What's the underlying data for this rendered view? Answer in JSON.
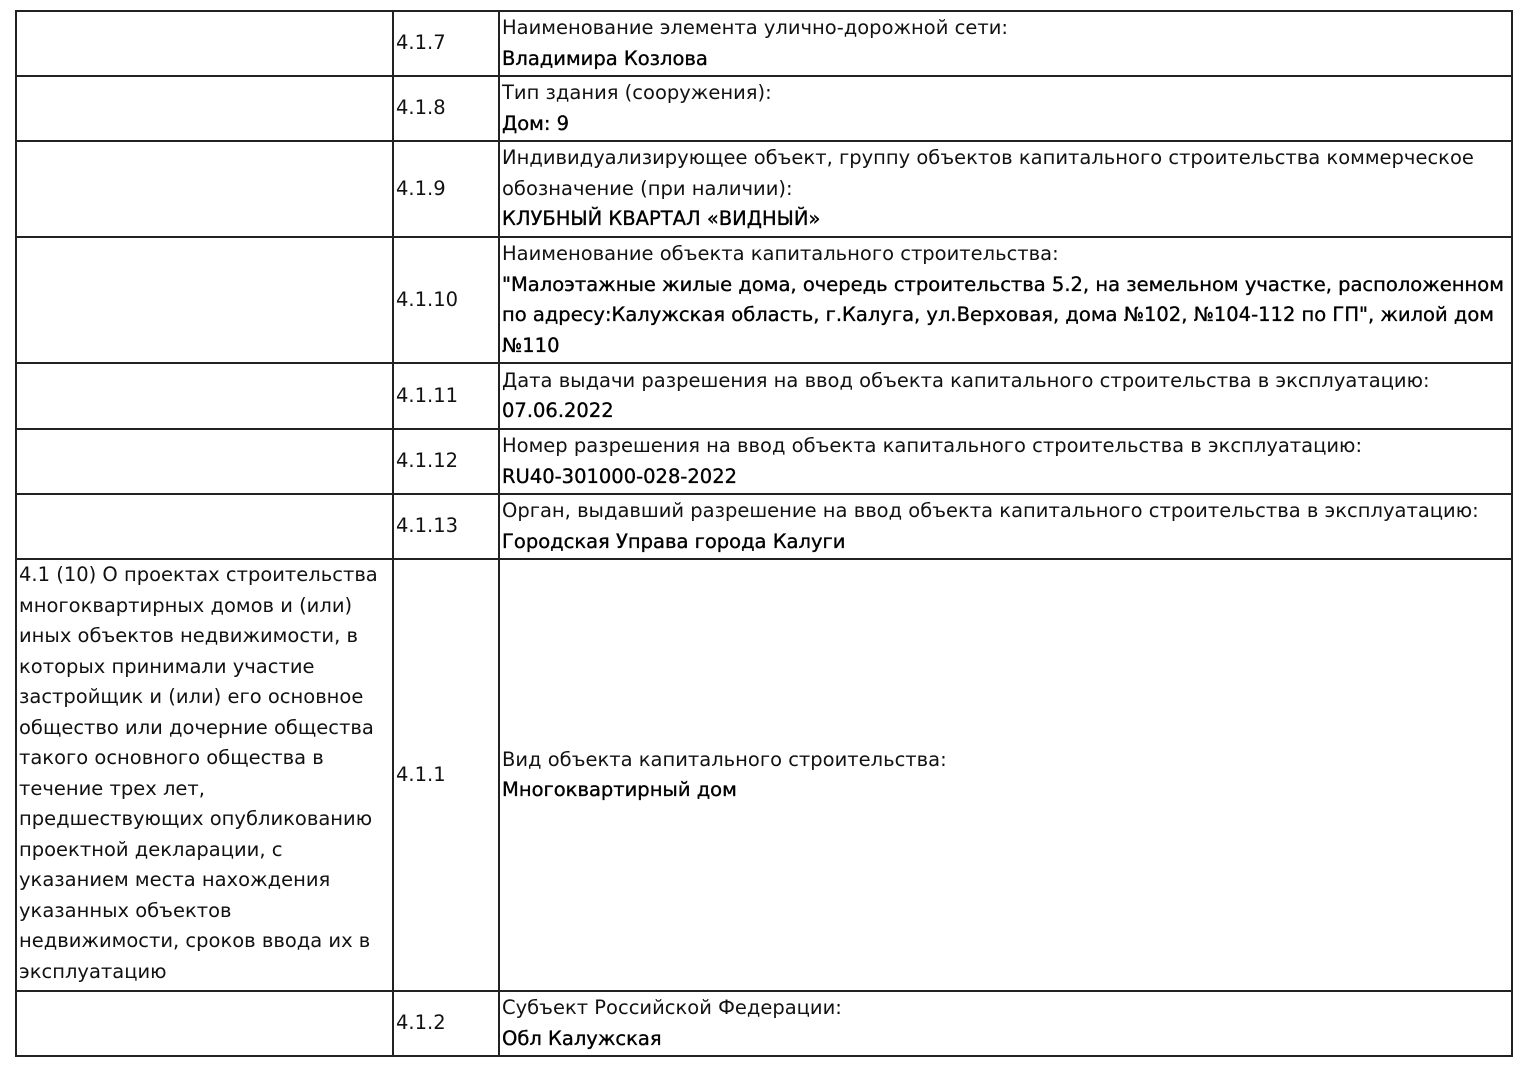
{
  "rows": [
    {
      "section": "",
      "code": "4.1.7",
      "label": "Наименование элемента улично-дорожной сети:",
      "value": "Владимира Козлова",
      "height": 65
    },
    {
      "section": "",
      "code": "4.1.8",
      "label": "Тип здания (сооружения):",
      "value": "Дом: 9",
      "height": 65
    },
    {
      "section": "",
      "code": "4.1.9",
      "label": "Индивидуализирующее объект, группу объектов капитального строительства коммерческое обозначение (при наличии):",
      "value": "КЛУБНЫЙ КВАРТАЛ «ВИДНЫЙ»",
      "height": 96
    },
    {
      "section": "",
      "code": "4.1.10",
      "label": "Наименование объекта капитального строительства:",
      "value": "\"Малоэтажные жилые дома, очередь строительства 5.2, на земельном участке, расположенном по адресу:Калужская область, г.Калуга, ул.Верховая, дома №102, №104-112 по ГП\", жилой дом №110",
      "height": 126
    },
    {
      "section": "",
      "code": "4.1.11",
      "label": "Дата выдачи разрешения на ввод объекта капитального строительства в эксплуатацию:",
      "value": "07.06.2022",
      "height": 66
    },
    {
      "section": "",
      "code": "4.1.12",
      "label": "Номер разрешения на ввод объекта капитального строительства в эксплуатацию:",
      "value": "RU40-301000-028-2022",
      "height": 65
    },
    {
      "section": "",
      "code": "4.1.13",
      "label": "Орган, выдавший разрешение на ввод объекта капитального строительства в эксплуатацию:",
      "value": "Городская Управа города Калуги",
      "height": 65
    },
    {
      "section": "4.1 (10) О проектах строительства многоквартирных домов и (или) иных объектов недвижимости, в которых принимали участие застройщик и (или) его основное общество или дочерние общества такого основного общества в течение трех лет, предшествующих опубликованию проектной декларации, с указанием места нахождения указанных объектов недвижимости, сроков ввода их в эксплуатацию",
      "code": "4.1.1",
      "label": "Вид объекта капитального строительства:",
      "value": "Многоквартирный дом",
      "height": 432
    },
    {
      "section": "",
      "code": "4.1.2",
      "label": "Субъект Российской Федерации:",
      "value": "Обл Калужская",
      "height": 65
    }
  ]
}
